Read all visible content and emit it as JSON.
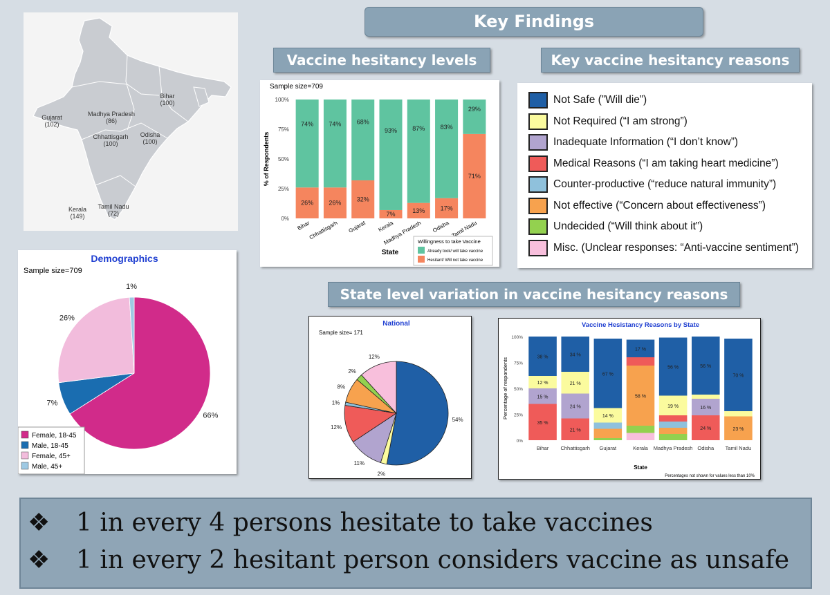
{
  "key_findings": "Key Findings",
  "hesitancy_levels_title": "Vaccine hesitancy levels",
  "reasons_title": "Key vaccine hesitancy reasons",
  "state_variation_title": "State level variation in vaccine hesitancy reasons",
  "map": {
    "labels": [
      {
        "state": "Bihar",
        "count": "(100)"
      },
      {
        "state": "Gujarat",
        "count": "(102)"
      },
      {
        "state": "Madhya Pradesh",
        "count": "(86)"
      },
      {
        "state": "Chhattisgarh",
        "count": "(100)"
      },
      {
        "state": "Odisha",
        "count": "(100)"
      },
      {
        "state": "Kerala",
        "count": "(149)"
      },
      {
        "state": "Tamil Nadu",
        "count": "(72)"
      }
    ]
  },
  "reasons_legend": [
    {
      "label": "Not Safe (”Will die”)",
      "color": "#1f5fa6"
    },
    {
      "label": "Not Required (“I am strong”)",
      "color": "#fbfb9e"
    },
    {
      "label": "Inadequate Information (“I don’t know”)",
      "color": "#b1a4cf"
    },
    {
      "label": "Medical Reasons (“I am taking heart medicine”)",
      "color": "#ef5b59"
    },
    {
      "label": "Counter-productive (“reduce natural immunity”)",
      "color": "#8fc1dc"
    },
    {
      "label": "Not effective (“Concern about effectiveness”)",
      "color": "#f7a24e"
    },
    {
      "label": "Undecided (“Will think about it”)",
      "color": "#93d14f"
    },
    {
      "label": "Misc. (Unclear responses: “Anti-vaccine sentiment”)",
      "color": "#f8bfdc"
    }
  ],
  "bottom": {
    "bullet": "❖",
    "line1": "1 in every 4 persons hesitate to take vaccines",
    "line2": "1 in every 2 hesitant person considers vaccine as unsafe"
  },
  "chart_data": [
    {
      "id": "hesitancy",
      "type": "bar",
      "subtitle": "Sample size=709",
      "xlabel": "State",
      "ylabel": "% of Respondents",
      "yticks": [
        "0%",
        "25%",
        "50%",
        "75%",
        "100%"
      ],
      "ylim": [
        0,
        100
      ],
      "categories": [
        "Bihar",
        "Chhattisgarh",
        "Gujarat",
        "Kerala",
        "Madhya Pradesh",
        "Odisha",
        "Tamil Nadu"
      ],
      "series": [
        {
          "name": "Hesitant/ Will not take vaccine",
          "color": "#f5855e",
          "values": [
            26,
            26,
            32,
            7,
            13,
            17,
            71
          ],
          "labels": [
            "26%",
            "26%",
            "32%",
            "7%",
            "13%",
            "17%",
            "71%"
          ]
        },
        {
          "name": "Already took/ will take vaccine",
          "color": "#5fc4a0",
          "values": [
            74,
            74,
            68,
            93,
            87,
            83,
            29
          ],
          "labels": [
            "74%",
            "74%",
            "68%",
            "93%",
            "87%",
            "83%",
            "29%"
          ]
        }
      ],
      "legend_title": "Willingness to take Vaccine",
      "legend_position": "bottom-right"
    },
    {
      "id": "demographics",
      "type": "pie",
      "title": "Demographics",
      "subtitle": "Sample size=709",
      "slices": [
        {
          "name": "Female, 18-45",
          "value": 66,
          "label": "66%",
          "color": "#d12b8a"
        },
        {
          "name": "Male, 18-45",
          "value": 7,
          "label": "7%",
          "color": "#1a6db0"
        },
        {
          "name": "Female, 45+",
          "value": 26,
          "label": "26%",
          "color": "#f2bcdc"
        },
        {
          "name": "Male, 45+",
          "value": 1,
          "label": "1%",
          "color": "#9ec9e3"
        }
      ],
      "legend_position": "bottom-left"
    },
    {
      "id": "national",
      "type": "pie",
      "title": "National",
      "subtitle": "Sample size= 171",
      "slices": [
        {
          "name": "Not Safe",
          "value": 54,
          "label": "54%",
          "color": "#1f5fa6"
        },
        {
          "name": "Not Required",
          "value": 2,
          "label": "2%",
          "color": "#fbfb9e"
        },
        {
          "name": "Inadequate Information",
          "value": 11,
          "label": "11%",
          "color": "#b1a4cf"
        },
        {
          "name": "Medical Reasons",
          "value": 12,
          "label": "12%",
          "color": "#ef5b59"
        },
        {
          "name": "Counter-productive",
          "value": 1,
          "label": "1%",
          "color": "#8fc1dc"
        },
        {
          "name": "Not effective",
          "value": 8,
          "label": "8%",
          "color": "#f7a24e"
        },
        {
          "name": "Undecided",
          "value": 2,
          "label": "2%",
          "color": "#93d14f"
        },
        {
          "name": "Misc.",
          "value": 12,
          "label": "12%",
          "color": "#f8bfdc"
        }
      ]
    },
    {
      "id": "by_state",
      "type": "bar",
      "title": "Vaccine Hesistancy Reasons by State",
      "xlabel": "State",
      "ylabel": "Percentage of respondents",
      "yticks": [
        "0%",
        "25%",
        "50%",
        "75%",
        "100%"
      ],
      "ylim": [
        0,
        100
      ],
      "note": "Percentages not shown for values less than 10%",
      "categories": [
        "Bihar",
        "Chhattisgarh",
        "Gujarat",
        "Kerala",
        "Madhya Pradesh",
        "Odisha",
        "Tamil Nadu"
      ],
      "series": [
        {
          "name": "Misc.",
          "color": "#f8bfdc",
          "values": [
            0,
            0,
            0,
            7,
            0,
            0,
            0
          ]
        },
        {
          "name": "Undecided",
          "color": "#93d14f",
          "values": [
            0,
            0,
            2,
            7,
            6,
            0,
            0
          ]
        },
        {
          "name": "Not effective",
          "color": "#f7a24e",
          "values": [
            0,
            0,
            9,
            58,
            6,
            0,
            23
          ]
        },
        {
          "name": "Counter-productive",
          "color": "#8fc1dc",
          "values": [
            0,
            0,
            6,
            0,
            6,
            0,
            0
          ]
        },
        {
          "name": "Medical Reasons",
          "color": "#ef5b59",
          "values": [
            35,
            21,
            0,
            8,
            6,
            24,
            0
          ]
        },
        {
          "name": "Inadequate Information",
          "color": "#b1a4cf",
          "values": [
            15,
            24,
            0,
            0,
            0,
            16,
            0
          ]
        },
        {
          "name": "Not Required",
          "color": "#fbfb9e",
          "values": [
            12,
            21,
            14,
            0,
            19,
            4,
            5
          ]
        },
        {
          "name": "Not Safe",
          "color": "#1f5fa6",
          "values": [
            38,
            34,
            67,
            17,
            56,
            56,
            70
          ]
        }
      ]
    }
  ]
}
